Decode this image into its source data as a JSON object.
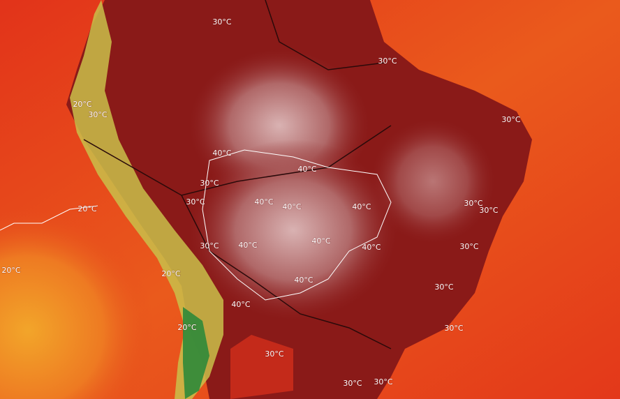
{
  "map": {
    "contour_labels": [
      "30°C",
      "30°C",
      "30°C",
      "30°C",
      "20°C",
      "40°C",
      "40°C",
      "30°C",
      "40°C",
      "40°C",
      "40°C",
      "40°C",
      "30°C",
      "40°C",
      "40°C",
      "40°C",
      "30°C",
      "30°C",
      "30°C",
      "30°C",
      "30°C",
      "30°C",
      "30°C",
      "30°C",
      "20°C",
      "20°C",
      "20°C",
      "20°C",
      "40°C",
      "30°C"
    ]
  }
}
